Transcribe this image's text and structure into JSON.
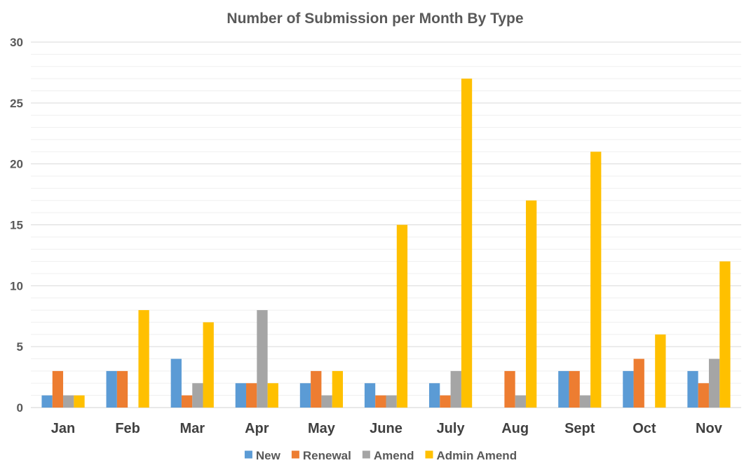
{
  "chart_data": {
    "type": "bar",
    "title": "Number of Submission per Month By Type",
    "xlabel": "",
    "ylabel": "",
    "ylim": [
      0,
      30
    ],
    "yticks": [
      0,
      5,
      10,
      15,
      20,
      25,
      30
    ],
    "grid": true,
    "legend_position": "bottom",
    "categories": [
      "Jan",
      "Feb",
      "Mar",
      "Apr",
      "May",
      "June",
      "July",
      "Aug",
      "Sept",
      "Oct",
      "Nov"
    ],
    "series": [
      {
        "name": "New",
        "color": "#5B9BD5",
        "values": [
          1,
          3,
          4,
          2,
          2,
          2,
          2,
          0,
          3,
          3,
          3
        ]
      },
      {
        "name": "Renewal",
        "color": "#ED7D31",
        "values": [
          3,
          3,
          1,
          2,
          3,
          1,
          1,
          3,
          3,
          4,
          2
        ]
      },
      {
        "name": "Amend",
        "color": "#A5A5A5",
        "values": [
          1,
          0,
          2,
          8,
          1,
          1,
          3,
          1,
          1,
          0,
          4
        ]
      },
      {
        "name": "Admin Amend",
        "color": "#FFC000",
        "values": [
          1,
          8,
          7,
          2,
          3,
          15,
          27,
          17,
          21,
          6,
          12
        ]
      }
    ]
  }
}
